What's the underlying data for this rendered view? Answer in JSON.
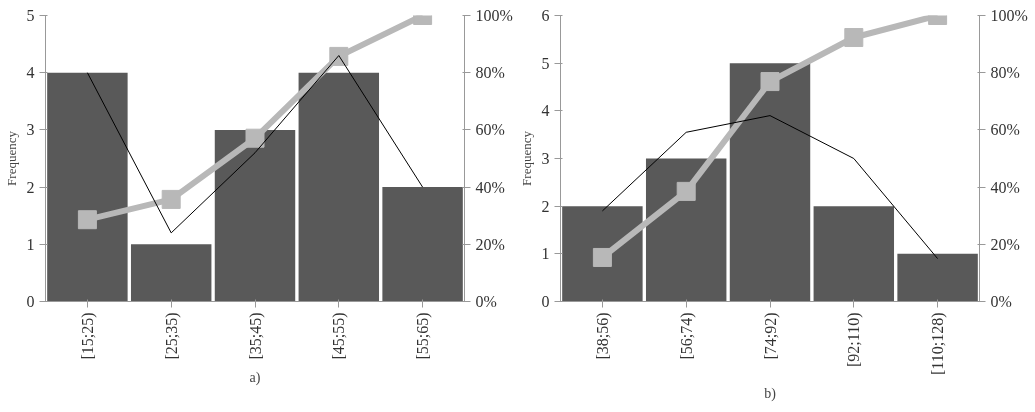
{
  "chart_data": [
    {
      "type": "bar",
      "categories": [
        "[15;25)",
        "[25;35)",
        "[35;45)",
        "[45;55)",
        "[55;65)"
      ],
      "ylabel": "Frequency",
      "ylim": [
        0,
        5
      ],
      "yticks": [
        0,
        1,
        2,
        3,
        4,
        5
      ],
      "y2lim": [
        0,
        100
      ],
      "y2ticks": [
        {
          "value": 0,
          "label": "0%"
        },
        {
          "value": 20,
          "label": "20%"
        },
        {
          "value": 40,
          "label": "40%"
        },
        {
          "value": 60,
          "label": "60%"
        },
        {
          "value": 80,
          "label": "80%"
        },
        {
          "value": 100,
          "label": "100%"
        }
      ],
      "grid": false,
      "annotations": [
        "a)"
      ],
      "series": [
        {
          "color": "#595959",
          "values": [
            4,
            1,
            3,
            4,
            2
          ]
        },
        {
          "type": "line",
          "axis": "y2",
          "color": "#b8b8b8",
          "marker": "square",
          "values": [
            28.6,
            35.7,
            57.1,
            85.7,
            100
          ]
        },
        {
          "type": "line",
          "color": "#000000",
          "marker": "none",
          "values": [
            4,
            1.2,
            2.6,
            4.3,
            2
          ]
        }
      ]
    },
    {
      "type": "bar",
      "categories": [
        "[38;56)",
        "[56;74)",
        "[74;92)",
        "[92;110)",
        "[110;128)"
      ],
      "ylabel": "Frequency",
      "ylim": [
        0,
        6
      ],
      "yticks": [
        0,
        1,
        2,
        3,
        4,
        5,
        6
      ],
      "y2lim": [
        0,
        100
      ],
      "y2ticks": [
        {
          "value": 0,
          "label": "0%"
        },
        {
          "value": 20,
          "label": "20%"
        },
        {
          "value": 40,
          "label": "40%"
        },
        {
          "value": 60,
          "label": "60%"
        },
        {
          "value": 80,
          "label": "80%"
        },
        {
          "value": 100,
          "label": "100%"
        }
      ],
      "grid": false,
      "annotations": [
        "b)"
      ],
      "series": [
        {
          "color": "#595959",
          "values": [
            2,
            3,
            5,
            2,
            1
          ]
        },
        {
          "type": "line",
          "axis": "y2",
          "color": "#b8b8b8",
          "marker": "square",
          "values": [
            15.4,
            38.5,
            76.9,
            92.3,
            100
          ]
        },
        {
          "type": "line",
          "color": "#000000",
          "marker": "none",
          "values": [
            1.9,
            3.55,
            3.9,
            3.0,
            0.9
          ]
        }
      ]
    }
  ]
}
